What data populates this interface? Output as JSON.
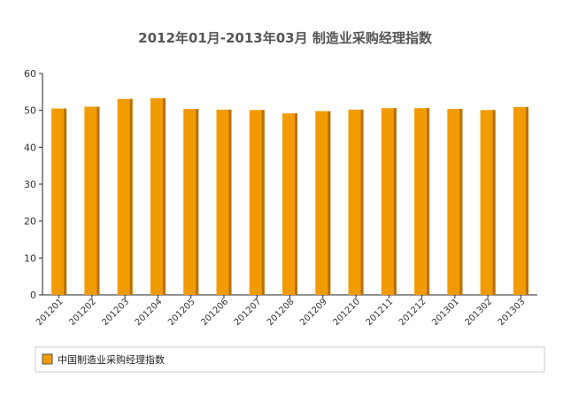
{
  "chart_data": {
    "type": "bar",
    "title": "2012年01月-2013年03月 制造业采购经理指数",
    "categories": [
      "201201",
      "201202",
      "201203",
      "201204",
      "201205",
      "201206",
      "201207",
      "201208",
      "201209",
      "201210",
      "201211",
      "201212",
      "201301",
      "201302",
      "201303"
    ],
    "series": [
      {
        "name": "中国制造业采购经理指数",
        "values": [
          50.5,
          51.0,
          53.1,
          53.3,
          50.4,
          50.2,
          50.1,
          49.2,
          49.8,
          50.2,
          50.6,
          50.6,
          50.4,
          50.1,
          50.9
        ]
      }
    ],
    "yticks": [
      0,
      10,
      20,
      30,
      40,
      50,
      60
    ],
    "ylim": [
      0,
      60
    ],
    "grid": false,
    "legend_position": "bottom",
    "colors": {
      "bar": "#F29B00",
      "bar_side": "#B86F00",
      "axis": "#222222"
    }
  }
}
